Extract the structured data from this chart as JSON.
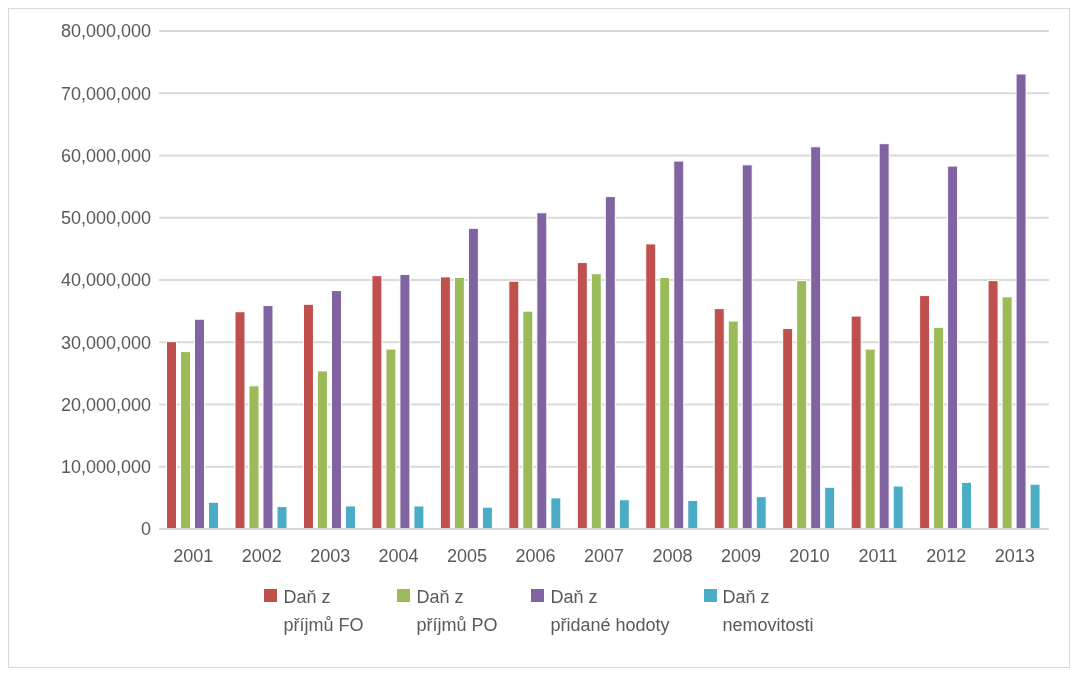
{
  "chart_data": {
    "type": "bar",
    "categories": [
      "2001",
      "2002",
      "2003",
      "2004",
      "2005",
      "2006",
      "2007",
      "2008",
      "2009",
      "2010",
      "2011",
      "2012",
      "2013"
    ],
    "series": [
      {
        "name": "Daň z příjmů FO",
        "color": "#c0504d",
        "values": [
          30100000,
          34900000,
          36100000,
          40700000,
          40500000,
          39800000,
          42800000,
          45800000,
          35400000,
          32200000,
          34200000,
          37500000,
          39900000
        ]
      },
      {
        "name": "Daň z příjmů PO",
        "color": "#9bbb59",
        "values": [
          28500000,
          23000000,
          25400000,
          28900000,
          40400000,
          35000000,
          41000000,
          40400000,
          33400000,
          39900000,
          28900000,
          32400000,
          37300000
        ]
      },
      {
        "name": "Daň z přidané hodoty",
        "color": "#8064a2",
        "values": [
          33700000,
          35900000,
          38300000,
          40900000,
          48300000,
          50800000,
          53400000,
          59100000,
          58500000,
          61400000,
          61900000,
          58300000,
          73100000
        ]
      },
      {
        "name": "Daň z nemovitosti",
        "color": "#4bacc6",
        "values": [
          4300000,
          3600000,
          3700000,
          3700000,
          3500000,
          5000000,
          4700000,
          4600000,
          5200000,
          6700000,
          6900000,
          7500000,
          7200000
        ]
      }
    ],
    "ylim": [
      0,
      80000000
    ],
    "yticks": [
      0,
      {
        "value": 10000000,
        "label": "10,000,000"
      },
      {
        "value": 20000000,
        "label": "20,000,000"
      },
      {
        "value": 30000000,
        "label": "30,000,000"
      },
      {
        "value": 40000000,
        "label": "40,000,000"
      },
      {
        "value": 50000000,
        "label": "50,000,000"
      },
      {
        "value": 60000000,
        "label": "60,000,000"
      },
      {
        "value": 70000000,
        "label": "70,000,000"
      },
      {
        "value": 80000000,
        "label": "80,000,000"
      }
    ],
    "grid": "y",
    "legend": "bottom"
  }
}
